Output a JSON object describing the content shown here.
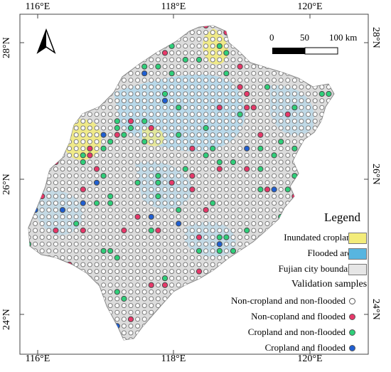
{
  "axes": {
    "lon_labels": [
      "116°E",
      "118°E",
      "120°E"
    ],
    "lat_labels": [
      "28°N",
      "26°N",
      "24°N"
    ]
  },
  "scale_bar": {
    "labels": [
      "0",
      "50",
      "100 km"
    ]
  },
  "legend": {
    "title": "Legend",
    "items": [
      {
        "label": "Inundated cropland",
        "color": "#f3ec7a"
      },
      {
        "label": "Flooded area",
        "color": "#57b5e0"
      },
      {
        "label": "Fujian city boundary",
        "color": "#e6e6e6"
      }
    ]
  },
  "validation": {
    "title": "Validation samples",
    "items": [
      {
        "label": "Non-cropland and non-flooded",
        "color": "#ffffff"
      },
      {
        "label": "Non-copland and flooded",
        "color": "#e8386a"
      },
      {
        "label": "Cropland and non-flooded",
        "color": "#2fd07a"
      },
      {
        "label": "Cropland and flooded",
        "color": "#1f5fd3"
      }
    ]
  },
  "colors": {
    "land": "#dcdcdc",
    "flooded": "#a9d7ef",
    "inundated": "#f3ec7a",
    "sample_outline": "#555555"
  },
  "icons": {
    "north_arrow": "north-arrow-icon"
  }
}
